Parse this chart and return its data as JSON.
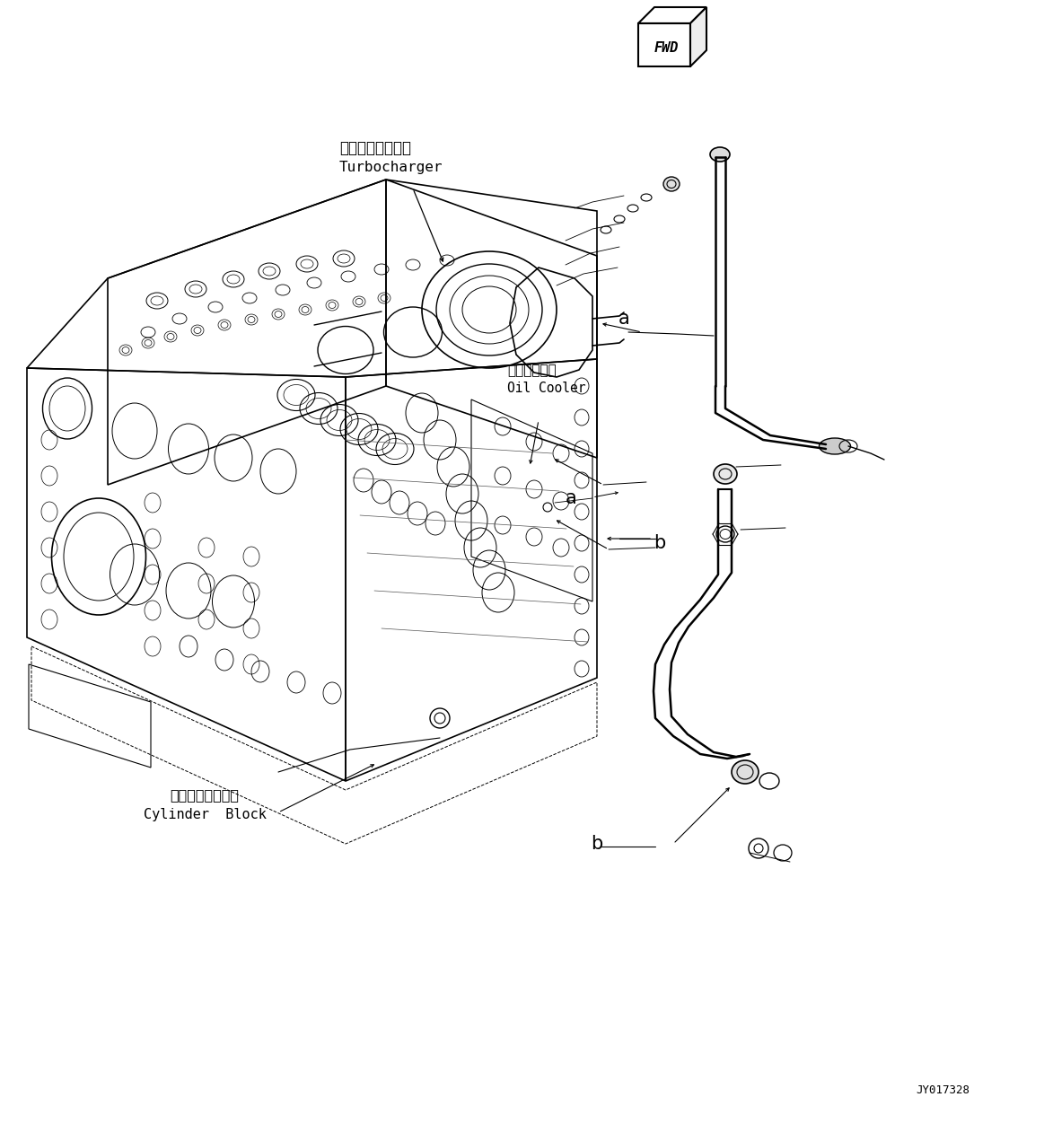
{
  "figure_width": 11.63,
  "figure_height": 12.61,
  "dpi": 100,
  "bg_color": "#ffffff",
  "line_color": "#000000",
  "part_number": "JY017328",
  "label_turbo_jp": "ターボチャージャ",
  "label_turbo_en": "Turbocharger",
  "label_oil_jp": "オイルクーラ",
  "label_oil_en": "Oil Cooler",
  "label_cyl_jp": "シリンダブロック",
  "label_cyl_en": "Cylinder Block"
}
